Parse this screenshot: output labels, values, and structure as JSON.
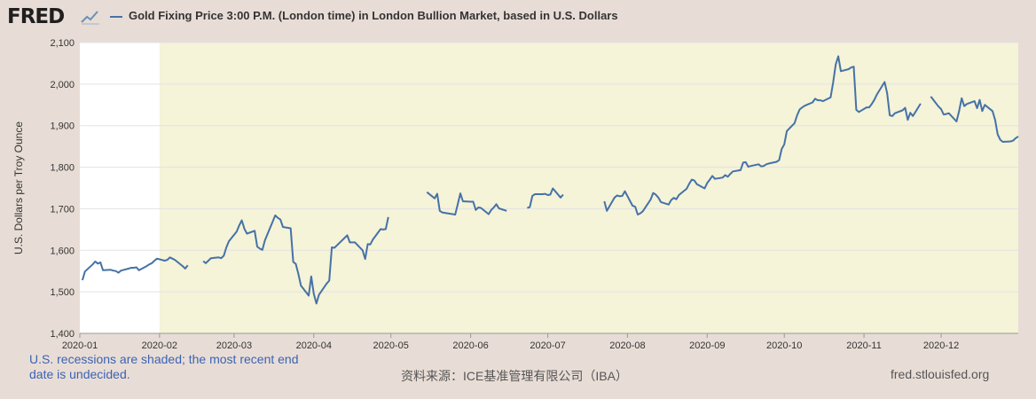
{
  "header": {
    "logo_text": "FRED",
    "logo_icon": "trend-line-icon",
    "title": "Gold Fixing Price 3:00 P.M. (London time) in London Bullion Market, based in U.S. Dollars"
  },
  "footer": {
    "recession_note": "U.S. recessions are shaded; the most recent end date is undecided.",
    "source": "资料来源：ICE基准管理有限公司（IBA）",
    "site": "fred.stlouisfed.org"
  },
  "chart_data": {
    "type": "line",
    "title": "Gold Fixing Price 3:00 P.M. (London time) in London Bullion Market, based in U.S. Dollars",
    "xlabel": "",
    "ylabel": "U.S. Dollars per Troy Ounce",
    "ylim": [
      1400,
      2100
    ],
    "yticks": [
      1400,
      1500,
      1600,
      1700,
      1800,
      1900,
      2000,
      2100
    ],
    "ytick_labels": [
      "1,400",
      "1,500",
      "1,600",
      "1,700",
      "1,800",
      "1,900",
      "2,000",
      "2,100"
    ],
    "xlim": [
      "2020-01-01",
      "2020-12-31"
    ],
    "xticks": [
      "2020-01",
      "2020-02",
      "2020-03",
      "2020-04",
      "2020-05",
      "2020-06",
      "2020-07",
      "2020-08",
      "2020-09",
      "2020-10",
      "2020-11",
      "2020-12"
    ],
    "grid": true,
    "recession_shading": {
      "start": "2020-02-01",
      "end": "2020-12-31",
      "color": "#f5f3d8"
    },
    "series": [
      {
        "name": "Gold Fixing Price 3:00 P.M. (London time) in London Bullion Market, based in U.S. Dollars",
        "color": "#4572a7",
        "points": [
          [
            "2020-01-02",
            1528
          ],
          [
            "2020-01-03",
            1549
          ],
          [
            "2020-01-06",
            1566
          ],
          [
            "2020-01-07",
            1573
          ],
          [
            "2020-01-08",
            1568
          ],
          [
            "2020-01-09",
            1571
          ],
          [
            "2020-01-10",
            1552
          ],
          [
            "2020-01-13",
            1553
          ],
          [
            "2020-01-14",
            1551
          ],
          [
            "2020-01-15",
            1550
          ],
          [
            "2020-01-16",
            1546
          ],
          [
            "2020-01-17",
            1551
          ],
          [
            "2020-01-20",
            1556
          ],
          [
            "2020-01-21",
            1558
          ],
          [
            "2020-01-22",
            1558
          ],
          [
            "2020-01-23",
            1559
          ],
          [
            "2020-01-24",
            1552
          ],
          [
            "2020-01-27",
            1562
          ],
          [
            "2020-01-28",
            1566
          ],
          [
            "2020-01-29",
            1569
          ],
          [
            "2020-01-30",
            1575
          ],
          [
            "2020-01-31",
            1580
          ],
          [
            "2020-02-03",
            1575
          ],
          [
            "2020-02-04",
            1577
          ],
          [
            "2020-02-05",
            1583
          ],
          [
            "2020-02-06",
            1580
          ],
          [
            "2020-02-07",
            1577
          ],
          [
            "2020-02-10",
            1562
          ],
          [
            "2020-02-11",
            1556
          ],
          [
            "2020-02-12",
            1564
          ],
          null,
          [
            "2020-02-18",
            1574
          ],
          [
            "2020-02-19",
            1569
          ],
          [
            "2020-02-20",
            1575
          ],
          [
            "2020-02-21",
            1581
          ],
          [
            "2020-02-24",
            1583
          ],
          [
            "2020-02-25",
            1581
          ],
          [
            "2020-02-26",
            1587
          ],
          [
            "2020-02-27",
            1607
          ],
          [
            "2020-02-28",
            1622
          ],
          [
            "2020-03-02",
            1645
          ],
          [
            "2020-03-03",
            1660
          ],
          [
            "2020-03-04",
            1672
          ],
          [
            "2020-03-05",
            1652
          ],
          [
            "2020-03-06",
            1640
          ],
          [
            "2020-03-09",
            1647
          ],
          [
            "2020-03-10",
            1609
          ],
          [
            "2020-03-11",
            1604
          ],
          [
            "2020-03-12",
            1601
          ],
          [
            "2020-03-13",
            1624
          ],
          [
            "2020-03-16",
            1669
          ],
          [
            "2020-03-17",
            1684
          ],
          [
            "2020-03-18",
            1678
          ],
          [
            "2020-03-19",
            1674
          ],
          [
            "2020-03-20",
            1656
          ],
          [
            "2020-03-23",
            1653
          ],
          [
            "2020-03-24",
            1572
          ],
          [
            "2020-03-25",
            1567
          ],
          [
            "2020-03-26",
            1543
          ],
          [
            "2020-03-27",
            1515
          ],
          [
            "2020-03-30",
            1491
          ],
          [
            "2020-03-31",
            1537
          ],
          [
            "2020-04-01",
            1495
          ],
          [
            "2020-04-02",
            1472
          ],
          [
            "2020-04-03",
            1493
          ],
          [
            "2020-04-06",
            1520
          ],
          [
            "2020-04-07",
            1527
          ],
          [
            "2020-04-08",
            1607
          ],
          [
            "2020-04-09",
            1606
          ],
          [
            "2020-04-14",
            1636
          ],
          [
            "2020-04-15",
            1619
          ],
          [
            "2020-04-16",
            1619
          ],
          [
            "2020-04-17",
            1619
          ],
          [
            "2020-04-20",
            1600
          ],
          [
            "2020-04-21",
            1579
          ],
          [
            "2020-04-22",
            1615
          ],
          [
            "2020-04-23",
            1614
          ],
          [
            "2020-04-24",
            1626
          ],
          [
            "2020-04-27",
            1651
          ],
          [
            "2020-04-28",
            1650
          ],
          [
            "2020-04-29",
            1651
          ],
          [
            "2020-04-30",
            1680
          ],
          null,
          [
            "2020-05-15",
            1740
          ],
          [
            "2020-05-18",
            1725
          ],
          [
            "2020-05-19",
            1736
          ],
          [
            "2020-05-20",
            1695
          ],
          [
            "2020-05-21",
            1691
          ],
          [
            "2020-05-22",
            1690
          ],
          [
            "2020-05-26",
            1686
          ],
          [
            "2020-05-27",
            1711
          ],
          [
            "2020-05-28",
            1737
          ],
          [
            "2020-05-29",
            1718
          ],
          [
            "2020-06-01",
            1717
          ],
          [
            "2020-06-02",
            1717
          ],
          [
            "2020-06-03",
            1697
          ],
          [
            "2020-06-04",
            1703
          ],
          [
            "2020-06-05",
            1702
          ],
          [
            "2020-06-08",
            1687
          ],
          [
            "2020-06-09",
            1697
          ],
          [
            "2020-06-10",
            1703
          ],
          [
            "2020-06-11",
            1711
          ],
          [
            "2020-06-12",
            1701
          ],
          [
            "2020-06-15",
            1695
          ],
          null,
          [
            "2020-06-23",
            1702
          ],
          [
            "2020-06-24",
            1704
          ],
          [
            "2020-06-25",
            1731
          ],
          [
            "2020-06-26",
            1735
          ],
          [
            "2020-06-29",
            1735
          ],
          [
            "2020-06-30",
            1736
          ],
          [
            "2020-07-01",
            1733
          ],
          [
            "2020-07-02",
            1734
          ],
          [
            "2020-07-03",
            1749
          ],
          [
            "2020-07-06",
            1727
          ],
          [
            "2020-07-07",
            1734
          ],
          null,
          [
            "2020-07-23",
            1718
          ],
          [
            "2020-07-24",
            1695
          ],
          [
            "2020-07-27",
            1727
          ],
          [
            "2020-07-28",
            1732
          ],
          [
            "2020-07-29",
            1730
          ],
          [
            "2020-07-30",
            1731
          ],
          [
            "2020-07-31",
            1742
          ],
          [
            "2020-08-03",
            1707
          ],
          [
            "2020-08-04",
            1705
          ],
          [
            "2020-08-05",
            1686
          ],
          [
            "2020-08-06",
            1689
          ],
          [
            "2020-08-07",
            1694
          ],
          [
            "2020-08-10",
            1722
          ],
          [
            "2020-08-11",
            1738
          ],
          [
            "2020-08-12",
            1734
          ],
          [
            "2020-08-13",
            1727
          ],
          [
            "2020-08-14",
            1716
          ],
          [
            "2020-08-17",
            1710
          ],
          [
            "2020-08-18",
            1721
          ],
          [
            "2020-08-19",
            1726
          ],
          [
            "2020-08-20",
            1723
          ],
          [
            "2020-08-21",
            1733
          ],
          [
            "2020-08-24",
            1748
          ],
          [
            "2020-08-25",
            1760
          ],
          [
            "2020-08-26",
            1770
          ],
          [
            "2020-08-27",
            1768
          ],
          [
            "2020-08-28",
            1759
          ],
          [
            "2020-08-31",
            1749
          ],
          [
            "2020-09-01",
            1762
          ],
          [
            "2020-09-02",
            1770
          ],
          [
            "2020-09-03",
            1779
          ],
          [
            "2020-09-04",
            1772
          ],
          [
            "2020-09-07",
            1775
          ],
          [
            "2020-09-08",
            1781
          ],
          [
            "2020-09-09",
            1777
          ],
          [
            "2020-09-10",
            1784
          ],
          [
            "2020-09-11",
            1790
          ],
          [
            "2020-09-14",
            1793
          ],
          [
            "2020-09-15",
            1811
          ],
          [
            "2020-09-16",
            1812
          ],
          [
            "2020-09-17",
            1801
          ],
          [
            "2020-09-18",
            1803
          ],
          [
            "2020-09-21",
            1807
          ],
          [
            "2020-09-22",
            1802
          ],
          [
            "2020-09-23",
            1803
          ],
          [
            "2020-09-24",
            1807
          ],
          [
            "2020-09-25",
            1809
          ],
          [
            "2020-09-28",
            1813
          ],
          [
            "2020-09-29",
            1817
          ],
          [
            "2020-09-30",
            1844
          ],
          [
            "2020-10-01",
            1855
          ],
          [
            "2020-10-02",
            1887
          ],
          [
            "2020-10-05",
            1906
          ],
          [
            "2020-10-06",
            1925
          ],
          [
            "2020-10-07",
            1939
          ],
          [
            "2020-10-08",
            1944
          ],
          [
            "2020-10-09",
            1948
          ],
          [
            "2020-10-12",
            1956
          ],
          [
            "2020-10-13",
            1965
          ],
          [
            "2020-10-14",
            1961
          ],
          [
            "2020-10-15",
            1961
          ],
          [
            "2020-10-16",
            1959
          ],
          [
            "2020-10-19",
            1968
          ],
          [
            "2020-10-20",
            2004
          ],
          [
            "2020-10-21",
            2047
          ],
          [
            "2020-10-22",
            2067
          ],
          [
            "2020-10-23",
            2031
          ],
          [
            "2020-10-26",
            2036
          ],
          [
            "2020-10-27",
            2040
          ],
          [
            "2020-10-28",
            2042
          ],
          [
            "2020-10-29",
            1938
          ],
          [
            "2020-10-30",
            1933
          ],
          [
            "2020-11-02",
            1944
          ],
          [
            "2020-11-03",
            1944
          ],
          [
            "2020-11-04",
            1952
          ],
          [
            "2020-11-05",
            1962
          ],
          [
            "2020-11-06",
            1975
          ],
          [
            "2020-11-09",
            2005
          ],
          [
            "2020-11-10",
            1978
          ],
          [
            "2020-11-11",
            1925
          ],
          [
            "2020-11-12",
            1923
          ],
          [
            "2020-11-13",
            1930
          ],
          [
            "2020-11-16",
            1937
          ],
          [
            "2020-11-17",
            1943
          ],
          [
            "2020-11-18",
            1914
          ],
          [
            "2020-11-19",
            1931
          ],
          [
            "2020-11-20",
            1923
          ],
          [
            "2020-11-23",
            1953
          ],
          null,
          [
            "2020-11-27",
            1970
          ],
          [
            "2020-11-30",
            1946
          ],
          [
            "2020-12-01",
            1940
          ],
          [
            "2020-12-02",
            1927
          ],
          [
            "2020-12-03",
            1928
          ],
          [
            "2020-12-04",
            1930
          ],
          [
            "2020-12-07",
            1910
          ],
          [
            "2020-12-08",
            1935
          ],
          [
            "2020-12-09",
            1966
          ],
          [
            "2020-12-10",
            1947
          ],
          [
            "2020-12-11",
            1952
          ],
          [
            "2020-12-14",
            1959
          ],
          [
            "2020-12-15",
            1942
          ],
          [
            "2020-12-16",
            1962
          ],
          [
            "2020-12-17",
            1935
          ],
          [
            "2020-12-18",
            1950
          ],
          [
            "2020-12-21",
            1935
          ],
          [
            "2020-12-22",
            1914
          ],
          [
            "2020-12-23",
            1879
          ],
          [
            "2020-12-24",
            1866
          ],
          [
            "2020-12-25",
            1861
          ],
          [
            "2020-12-28",
            1862
          ],
          [
            "2020-12-29",
            1864
          ],
          [
            "2020-12-30",
            1870
          ],
          [
            "2020-12-31",
            1874
          ]
        ]
      }
    ]
  }
}
